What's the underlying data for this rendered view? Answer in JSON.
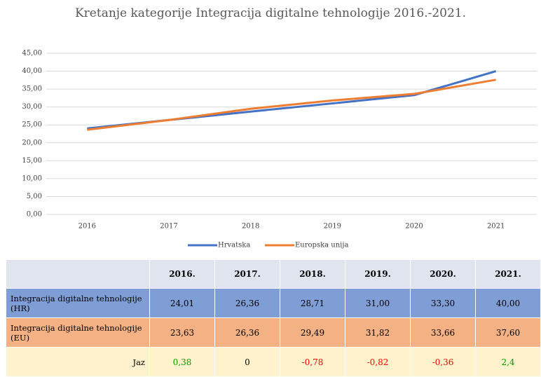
{
  "chart_data": {
    "type": "line",
    "title": "Kretanje kategorije Integracija digitalne tehnologije 2016.-2021.",
    "categories": [
      "2016",
      "2017",
      "2018",
      "2019",
      "2020",
      "2021"
    ],
    "series": [
      {
        "name": "Hrvatska",
        "color": "#4472c4",
        "values": [
          24.01,
          26.36,
          28.71,
          31.0,
          33.3,
          40.0
        ]
      },
      {
        "name": "Europska unija",
        "color": "#ed7d31",
        "values": [
          23.63,
          26.36,
          29.49,
          31.82,
          33.66,
          37.6
        ]
      }
    ],
    "ylim": [
      0,
      45
    ],
    "yticks": [
      {
        "value": 0,
        "label": "0,00"
      },
      {
        "value": 5,
        "label": "5,00"
      },
      {
        "value": 10,
        "label": "10,00"
      },
      {
        "value": 15,
        "label": "15,00"
      },
      {
        "value": 20,
        "label": "20,00"
      },
      {
        "value": 25,
        "label": "25,00"
      },
      {
        "value": 30,
        "label": "30,00"
      },
      {
        "value": 35,
        "label": "35,00"
      },
      {
        "value": 40,
        "label": "40,00"
      },
      {
        "value": 45,
        "label": "45,00"
      }
    ],
    "grid": true,
    "legend": "bottom"
  },
  "table": {
    "columns": [
      "2016.",
      "2017.",
      "2018.",
      "2019.",
      "2020.",
      "2021."
    ],
    "rows": [
      {
        "label": "Integracija digitalne tehnologije (HR)",
        "color": "#809ed6",
        "cells": [
          "24,01",
          "26,36",
          "28,71",
          "31,00",
          "33,30",
          "40,00"
        ],
        "cell_colors": [
          "#000000",
          "#000000",
          "#000000",
          "#000000",
          "#000000",
          "#000000"
        ]
      },
      {
        "label": "Integracija digitalne tehnologije (EU)",
        "color": "#f4b183",
        "cells": [
          "23,63",
          "26,36",
          "29,49",
          "31,82",
          "33,66",
          "37,60"
        ],
        "cell_colors": [
          "#000000",
          "#000000",
          "#000000",
          "#000000",
          "#000000",
          "#000000"
        ]
      },
      {
        "label": "Jaz",
        "color": "#fff2cc",
        "cells": [
          "0,38",
          "0",
          "-0,78",
          "-0,82",
          "-0,36",
          "2,4"
        ],
        "cell_colors": [
          "#00a000",
          "#000000",
          "#ff0000",
          "#ff0000",
          "#ff0000",
          "#00a000"
        ]
      }
    ]
  }
}
